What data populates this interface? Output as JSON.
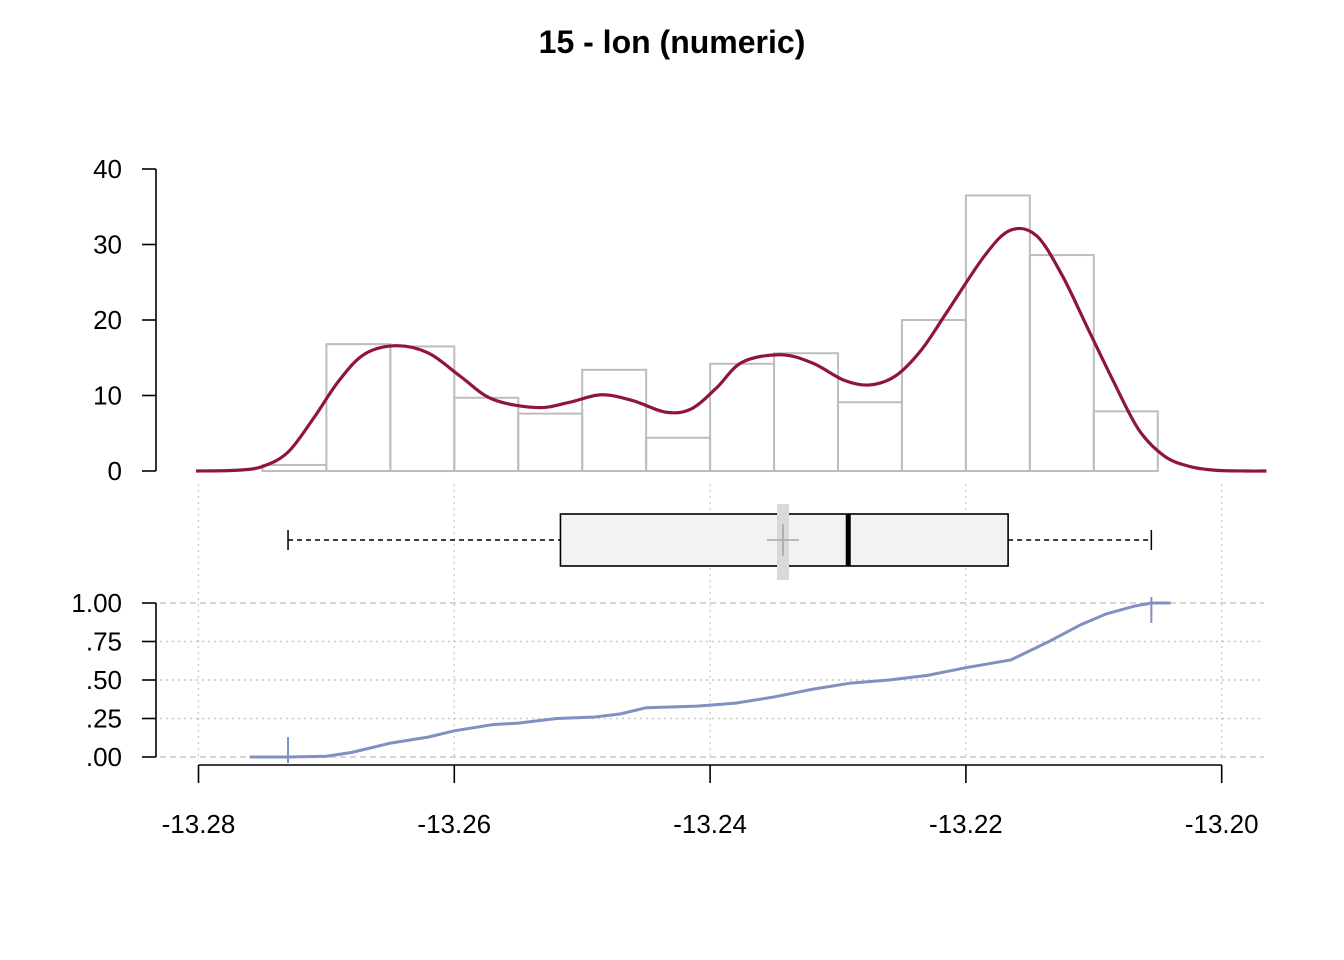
{
  "chart_data": {
    "type": "histogram-density-boxplot-ecdf",
    "title": "15 - lon (numeric)",
    "x_ticks": [
      -13.28,
      -13.26,
      -13.24,
      -13.22,
      -13.2
    ],
    "x_tick_labels": [
      "-13.28",
      "-13.26",
      -13.24,
      "-13.22",
      "-13.20"
    ],
    "xlim": [
      -13.2815,
      -13.1965
    ],
    "histogram": {
      "bin_edges": [
        -13.275,
        -13.27,
        -13.265,
        -13.26,
        -13.255,
        -13.25,
        -13.245,
        -13.24,
        -13.235,
        -13.23,
        -13.225,
        -13.22,
        -13.215,
        -13.21,
        -13.205
      ],
      "counts": [
        0.8,
        16.8,
        16.5,
        9.7,
        7.6,
        13.4,
        4.4,
        14.2,
        15.6,
        9.1,
        20.0,
        36.5,
        28.6,
        7.9
      ],
      "y_ticks": [
        0,
        10,
        20,
        30,
        40
      ],
      "y_tick_labels": [
        "0",
        "10",
        "20",
        "30",
        "40"
      ],
      "ylim": [
        0,
        40
      ],
      "bar_color": "#bdbdbd"
    },
    "density": {
      "color": "#8f1443",
      "x": [
        -13.2802,
        -13.277,
        -13.275,
        -13.273,
        -13.271,
        -13.269,
        -13.267,
        -13.2645,
        -13.262,
        -13.2595,
        -13.257,
        -13.2535,
        -13.251,
        -13.2485,
        -13.246,
        -13.2435,
        -13.2415,
        -13.2395,
        -13.2375,
        -13.2345,
        -13.232,
        -13.2295,
        -13.2275,
        -13.2255,
        -13.2235,
        -13.2215,
        -13.2185,
        -13.2165,
        -13.2145,
        -13.2125,
        -13.2105,
        -13.2085,
        -13.2065,
        -13.2045,
        -13.2025,
        -13.2005,
        -13.198,
        -13.1965
      ],
      "y": [
        0,
        0.1,
        0.6,
        2.5,
        7,
        12,
        15.5,
        16.6,
        15.6,
        12.5,
        9.5,
        8.4,
        9.1,
        10.1,
        9.3,
        7.8,
        8.2,
        11,
        14.4,
        15.4,
        14.3,
        12,
        11.4,
        12.6,
        16,
        21,
        28.6,
        31.9,
        31.2,
        26,
        19,
        12,
        5.5,
        2,
        0.6,
        0.1,
        0,
        0
      ]
    },
    "boxplot": {
      "min": -13.273,
      "q1": -13.2517,
      "median": -13.2292,
      "q3": -13.2167,
      "max": -13.2055,
      "mean": -13.2343,
      "fill": "#f2f2f2"
    },
    "ecdf": {
      "color": "#8090c0",
      "y_ticks": [
        0,
        0.25,
        0.5,
        0.75,
        1
      ],
      "y_tick_labels": [
        ".00",
        ".25",
        ".50",
        ".75",
        "1.00"
      ],
      "x": [
        -13.276,
        -13.273,
        -13.27,
        -13.268,
        -13.265,
        -13.262,
        -13.26,
        -13.257,
        -13.255,
        -13.252,
        -13.249,
        -13.247,
        -13.245,
        -13.241,
        -13.238,
        -13.235,
        -13.232,
        -13.229,
        -13.226,
        -13.223,
        -13.22,
        -13.2165,
        -13.2135,
        -13.211,
        -13.209,
        -13.2068,
        -13.2055,
        -13.204
      ],
      "y": [
        0,
        0,
        0.005,
        0.03,
        0.09,
        0.13,
        0.17,
        0.21,
        0.22,
        0.25,
        0.26,
        0.28,
        0.32,
        0.33,
        0.35,
        0.39,
        0.44,
        0.48,
        0.5,
        0.53,
        0.58,
        0.63,
        0.75,
        0.86,
        0.93,
        0.98,
        1,
        1
      ]
    }
  }
}
